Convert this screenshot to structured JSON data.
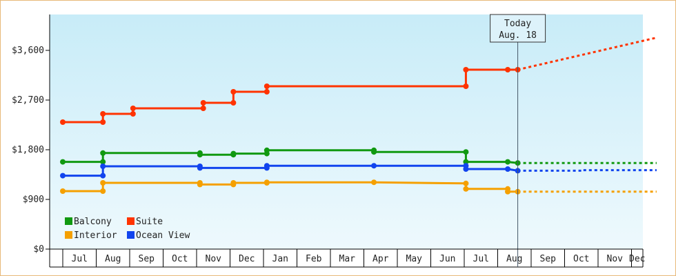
{
  "chart_data": {
    "type": "line",
    "title": "",
    "xlabel": "",
    "ylabel": "",
    "y_ticks": [
      "$0",
      "$900",
      "$1,800",
      "$2,700",
      "$3,600"
    ],
    "ylim": [
      0,
      4250
    ],
    "months": [
      "Jul",
      "Aug",
      "Sep",
      "Oct",
      "Nov",
      "Dec",
      "Jan",
      "Feb",
      "Mar",
      "Apr",
      "May",
      "Jun",
      "Jul",
      "Aug",
      "Sep",
      "Oct",
      "Nov",
      "Dec"
    ],
    "today": {
      "line1": "Today",
      "line2": "Aug. 18"
    },
    "legend": [
      "Balcony",
      "Suite",
      "Interior",
      "Ocean View"
    ],
    "series": [
      {
        "name": "Suite",
        "color": "#ff3300",
        "points": [
          [
            0.0,
            2300
          ],
          [
            1.2,
            2300
          ],
          [
            1.2,
            2450
          ],
          [
            2.1,
            2450
          ],
          [
            2.1,
            2550
          ],
          [
            4.2,
            2550
          ],
          [
            4.2,
            2650
          ],
          [
            5.1,
            2650
          ],
          [
            5.1,
            2850
          ],
          [
            6.1,
            2850
          ],
          [
            6.1,
            2950
          ],
          [
            12.05,
            2950
          ],
          [
            12.05,
            3250
          ],
          [
            13.3,
            3250
          ],
          [
            13.6,
            3250
          ]
        ],
        "markers": [
          [
            0.0,
            2300
          ],
          [
            1.2,
            2300
          ],
          [
            1.2,
            2450
          ],
          [
            2.1,
            2450
          ],
          [
            2.1,
            2550
          ],
          [
            4.2,
            2550
          ],
          [
            4.2,
            2650
          ],
          [
            5.1,
            2650
          ],
          [
            5.1,
            2850
          ],
          [
            6.1,
            2850
          ],
          [
            6.1,
            2950
          ],
          [
            12.05,
            2950
          ],
          [
            12.05,
            3250
          ],
          [
            13.3,
            3250
          ],
          [
            13.6,
            3250
          ]
        ],
        "forecast": [
          [
            13.6,
            3250
          ],
          [
            17.75,
            3830
          ]
        ]
      },
      {
        "name": "Balcony",
        "color": "#119911",
        "points": [
          [
            0.0,
            1580
          ],
          [
            1.2,
            1580
          ],
          [
            1.2,
            1740
          ],
          [
            4.1,
            1740
          ],
          [
            4.1,
            1710
          ],
          [
            5.1,
            1710
          ],
          [
            5.1,
            1730
          ],
          [
            6.1,
            1730
          ],
          [
            6.1,
            1790
          ],
          [
            9.3,
            1790
          ],
          [
            9.3,
            1760
          ],
          [
            12.05,
            1760
          ],
          [
            12.05,
            1580
          ],
          [
            13.3,
            1580
          ],
          [
            13.6,
            1560
          ]
        ],
        "markers": [
          [
            0.0,
            1580
          ],
          [
            1.2,
            1580
          ],
          [
            1.2,
            1740
          ],
          [
            4.1,
            1740
          ],
          [
            4.1,
            1710
          ],
          [
            5.1,
            1710
          ],
          [
            5.1,
            1730
          ],
          [
            6.1,
            1730
          ],
          [
            6.1,
            1790
          ],
          [
            9.3,
            1790
          ],
          [
            9.3,
            1760
          ],
          [
            12.05,
            1760
          ],
          [
            12.05,
            1580
          ],
          [
            13.3,
            1580
          ],
          [
            13.6,
            1560
          ]
        ],
        "forecast": [
          [
            13.6,
            1560
          ],
          [
            17.75,
            1560
          ]
        ]
      },
      {
        "name": "Ocean View",
        "color": "#1144ee",
        "points": [
          [
            0.0,
            1330
          ],
          [
            1.2,
            1330
          ],
          [
            1.2,
            1500
          ],
          [
            4.1,
            1500
          ],
          [
            4.1,
            1470
          ],
          [
            6.1,
            1470
          ],
          [
            6.1,
            1510
          ],
          [
            9.3,
            1510
          ],
          [
            12.05,
            1510
          ],
          [
            12.05,
            1450
          ],
          [
            13.3,
            1450
          ],
          [
            13.6,
            1420
          ]
        ],
        "markers": [
          [
            0.0,
            1330
          ],
          [
            1.2,
            1330
          ],
          [
            1.2,
            1500
          ],
          [
            4.1,
            1500
          ],
          [
            4.1,
            1470
          ],
          [
            6.1,
            1470
          ],
          [
            6.1,
            1510
          ],
          [
            9.3,
            1510
          ],
          [
            12.05,
            1510
          ],
          [
            12.05,
            1450
          ],
          [
            13.3,
            1450
          ],
          [
            13.6,
            1420
          ]
        ],
        "forecast": [
          [
            13.6,
            1420
          ],
          [
            15.5,
            1420
          ],
          [
            15.5,
            1430
          ],
          [
            17.75,
            1430
          ]
        ]
      },
      {
        "name": "Interior",
        "color": "#f5a000",
        "points": [
          [
            0.0,
            1050
          ],
          [
            1.2,
            1050
          ],
          [
            1.2,
            1200
          ],
          [
            4.1,
            1200
          ],
          [
            4.1,
            1170
          ],
          [
            5.1,
            1170
          ],
          [
            5.1,
            1200
          ],
          [
            6.1,
            1200
          ],
          [
            6.1,
            1210
          ],
          [
            9.3,
            1210
          ],
          [
            12.05,
            1190
          ],
          [
            12.05,
            1090
          ],
          [
            13.3,
            1090
          ],
          [
            13.3,
            1040
          ],
          [
            13.6,
            1040
          ]
        ],
        "markers": [
          [
            0.0,
            1050
          ],
          [
            1.2,
            1050
          ],
          [
            1.2,
            1200
          ],
          [
            4.1,
            1200
          ],
          [
            4.1,
            1170
          ],
          [
            5.1,
            1170
          ],
          [
            5.1,
            1200
          ],
          [
            6.1,
            1200
          ],
          [
            6.1,
            1210
          ],
          [
            9.3,
            1210
          ],
          [
            12.05,
            1190
          ],
          [
            12.05,
            1090
          ],
          [
            13.3,
            1090
          ],
          [
            13.3,
            1040
          ],
          [
            13.6,
            1040
          ]
        ],
        "forecast": [
          [
            13.6,
            1040
          ],
          [
            17.75,
            1040
          ]
        ]
      }
    ],
    "today_x": 13.6,
    "grid": false,
    "legend_position": "bottom-left"
  }
}
